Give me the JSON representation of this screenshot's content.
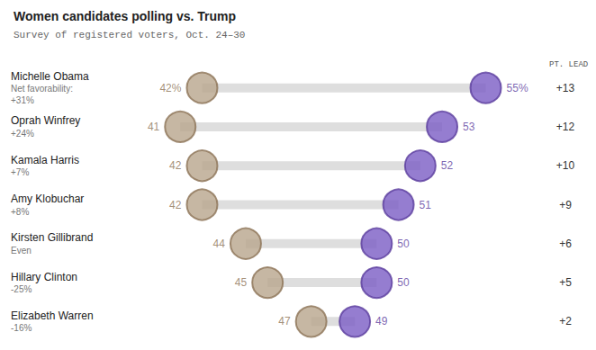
{
  "chart_data": {
    "type": "dumbbell",
    "title": "Women candidates polling vs. Trump",
    "subtitle": "Survey of registered voters, Oct. 24–30",
    "orientation": "horizontal",
    "categories": [
      "Michelle Obama",
      "Oprah Winfrey",
      "Kamala Harris",
      "Amy Klobuchar",
      "Kirsten Gillibrand",
      "Hillary Clinton",
      "Elizabeth Warren"
    ],
    "net_favorability": [
      "Net favorability: +31%",
      "+24%",
      "+7%",
      "+8%",
      "Even",
      "-25%",
      "-16%"
    ],
    "series": [
      {
        "name": "Trump",
        "color": "#8c7356",
        "values": [
          42,
          41,
          42,
          42,
          44,
          45,
          47
        ],
        "value_labels": [
          "42%",
          "41",
          "42",
          "42",
          "44",
          "45",
          "47"
        ]
      },
      {
        "name": "Women candidates",
        "color": "#5b3d9e",
        "values": [
          55,
          53,
          52,
          51,
          50,
          50,
          49
        ],
        "value_labels": [
          "55%",
          "53",
          "52",
          "51",
          "50",
          "50",
          "49"
        ]
      }
    ],
    "lead": {
      "header": "PT. LEAD",
      "labels": [
        "+13",
        "+12",
        "+10",
        "+9",
        "+6",
        "+5",
        "+2"
      ]
    },
    "xlim": [
      40,
      57
    ],
    "data_labels": true,
    "tick_labels": false,
    "grid": false
  }
}
